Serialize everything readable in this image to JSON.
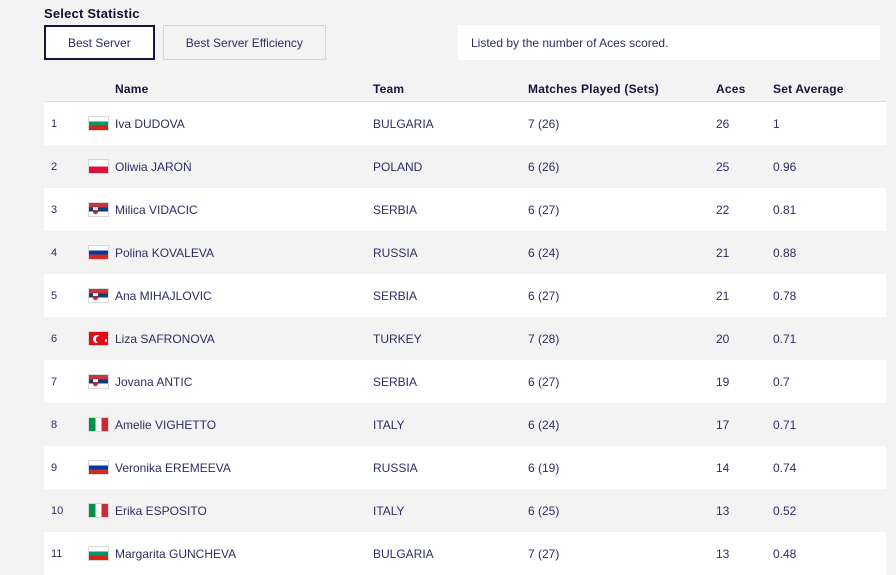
{
  "page": {
    "title": "Select Statistic",
    "note": "Listed by the number of Aces scored."
  },
  "tabs": [
    {
      "label": "Best Server",
      "selected": true
    },
    {
      "label": "Best Server Efficiency",
      "selected": false
    }
  ],
  "table": {
    "columns": {
      "name": "Name",
      "team": "Team",
      "matches": "Matches Played (Sets)",
      "aces": "Aces",
      "set_average": "Set Average"
    },
    "rows": [
      {
        "rank": "1",
        "country": "bulgaria",
        "name": "Iva DUDOVA",
        "team": "BULGARIA",
        "matches": "7 (26)",
        "aces": "26",
        "set_average": "1"
      },
      {
        "rank": "2",
        "country": "poland",
        "name": "Oliwia JAROŃ",
        "team": "POLAND",
        "matches": "6 (26)",
        "aces": "25",
        "set_average": "0.96"
      },
      {
        "rank": "3",
        "country": "serbia",
        "name": "Milica VIDACIC",
        "team": "SERBIA",
        "matches": "6 (27)",
        "aces": "22",
        "set_average": "0.81"
      },
      {
        "rank": "4",
        "country": "russia",
        "name": "Polina KOVALEVA",
        "team": "RUSSIA",
        "matches": "6 (24)",
        "aces": "21",
        "set_average": "0.88"
      },
      {
        "rank": "5",
        "country": "serbia",
        "name": "Ana MIHAJLOVIC",
        "team": "SERBIA",
        "matches": "6 (27)",
        "aces": "21",
        "set_average": "0.78"
      },
      {
        "rank": "6",
        "country": "turkey",
        "name": "Liza SAFRONOVA",
        "team": "TURKEY",
        "matches": "7 (28)",
        "aces": "20",
        "set_average": "0.71"
      },
      {
        "rank": "7",
        "country": "serbia",
        "name": "Jovana ANTIC",
        "team": "SERBIA",
        "matches": "6 (27)",
        "aces": "19",
        "set_average": "0.7"
      },
      {
        "rank": "8",
        "country": "italy",
        "name": "Amelie VIGHETTO",
        "team": "ITALY",
        "matches": "6 (24)",
        "aces": "17",
        "set_average": "0.71"
      },
      {
        "rank": "9",
        "country": "russia",
        "name": "Veronika EREMEEVA",
        "team": "RUSSIA",
        "matches": "6 (19)",
        "aces": "14",
        "set_average": "0.74"
      },
      {
        "rank": "10",
        "country": "italy",
        "name": "Erika ESPOSITO",
        "team": "ITALY",
        "matches": "6 (25)",
        "aces": "13",
        "set_average": "0.52"
      },
      {
        "rank": "11",
        "country": "bulgaria",
        "name": "Margarita GUNCHEVA",
        "team": "BULGARIA",
        "matches": "7 (27)",
        "aces": "13",
        "set_average": "0.48"
      }
    ]
  },
  "colors": {
    "page_background": "#f3f3f3",
    "row_stripe": "#ffffff",
    "text_navy": "#2b2e63",
    "heading_dark": "#14143c",
    "selected_tab_border": "#15153d",
    "divider": "#dcdcdc"
  }
}
